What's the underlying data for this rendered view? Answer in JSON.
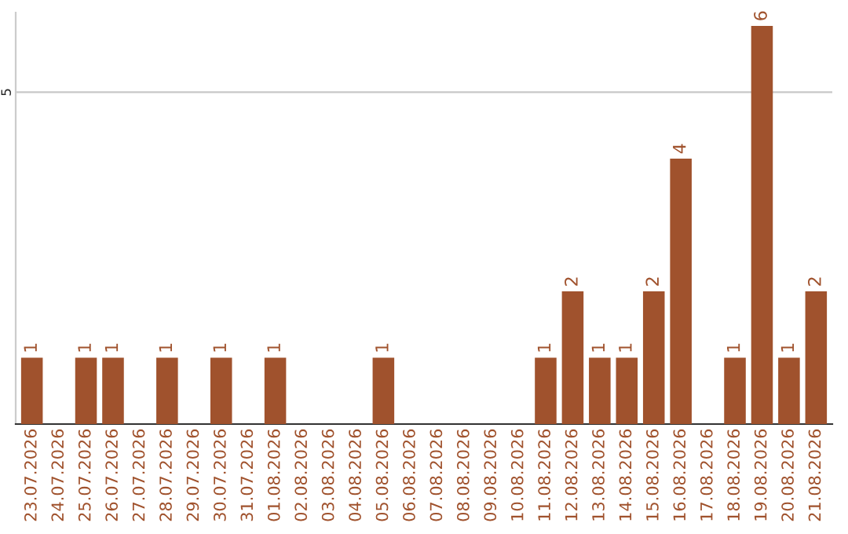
{
  "chart_data": {
    "type": "bar",
    "categories": [
      "23.07.2026",
      "24.07.2026",
      "25.07.2026",
      "26.07.2026",
      "27.07.2026",
      "28.07.2026",
      "29.07.2026",
      "30.07.2026",
      "31.07.2026",
      "01.08.2026",
      "02.08.2026",
      "03.08.2026",
      "04.08.2026",
      "05.08.2026",
      "06.08.2026",
      "07.08.2026",
      "08.08.2026",
      "09.08.2026",
      "10.08.2026",
      "11.08.2026",
      "12.08.2026",
      "13.08.2026",
      "14.08.2026",
      "15.08.2026",
      "16.08.2026",
      "17.08.2026",
      "18.08.2026",
      "19.08.2026",
      "20.08.2026",
      "21.08.2026"
    ],
    "values": [
      1,
      0,
      1,
      1,
      0,
      1,
      0,
      1,
      0,
      1,
      0,
      0,
      0,
      1,
      0,
      0,
      0,
      0,
      0,
      1,
      2,
      1,
      1,
      2,
      4,
      0,
      1,
      6,
      1,
      2
    ],
    "value_labels": [
      "1",
      null,
      "1",
      "1",
      null,
      "1",
      null,
      "1",
      null,
      "1",
      null,
      null,
      null,
      "1",
      null,
      null,
      null,
      null,
      null,
      "1",
      "2",
      "1",
      "1",
      "2",
      "4",
      null,
      "1",
      "6",
      "1",
      "2"
    ],
    "color": "#a0522d",
    "ylim": [
      0,
      6.2
    ],
    "yticks": [
      5
    ],
    "grid": "y",
    "legend": false
  }
}
